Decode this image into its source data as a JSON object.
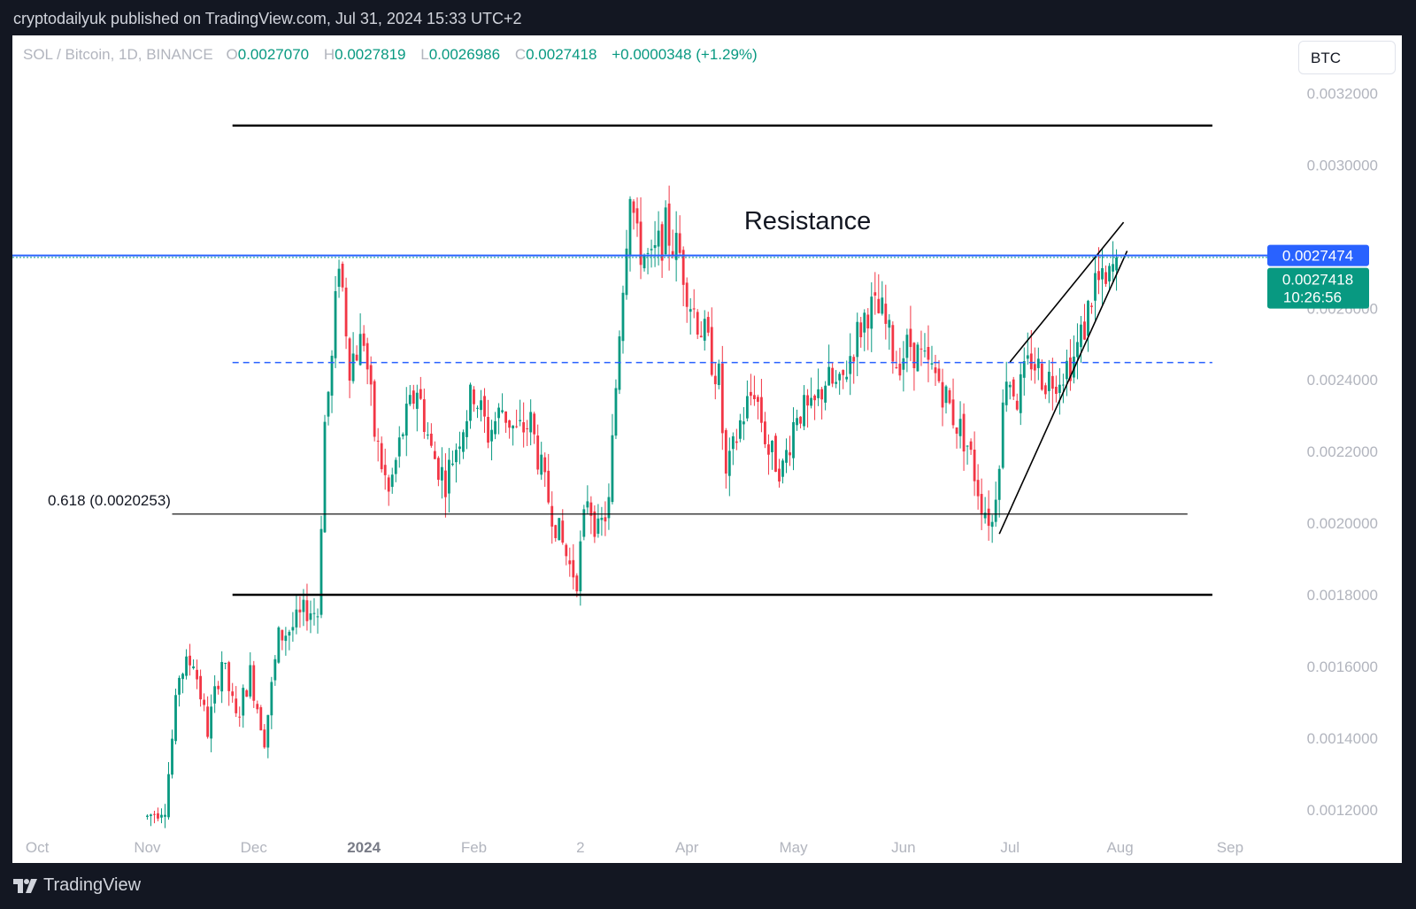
{
  "header": {
    "publisher": "cryptodailyuk published on TradingView.com, Jul 31, 2024 15:33 UTC+2"
  },
  "legend": {
    "symbol": "SOL / Bitcoin, 1D, BINANCE",
    "open_label": "O",
    "open": "0.0027070",
    "high_label": "H",
    "high": "0.0027819",
    "low_label": "L",
    "low": "0.0026986",
    "close_label": "C",
    "close": "0.0027418",
    "change": "+0.0000348 (+1.29%)"
  },
  "currency_button": "BTC",
  "footer": {
    "brand": "TradingView",
    "logo_icon": "tradingview-logo-icon"
  },
  "colors": {
    "up": "#089981",
    "down": "#f23645",
    "price_line": "#2962ff",
    "axis_text": "#b2b5be",
    "background": "#131722"
  },
  "chart_data": {
    "type": "candlestick",
    "symbol": "SOL / Bitcoin",
    "interval": "1D",
    "ylim": [
      0.00115,
      0.0033
    ],
    "y_ticks": [
      "0.0032000",
      "0.0030000",
      "0.0026000",
      "0.0024000",
      "0.0022000",
      "0.0020000",
      "0.0018000",
      "0.0016000",
      "0.0014000",
      "0.0012000"
    ],
    "x_axis": {
      "start": "2023-09-24",
      "end": "2024-09-07"
    },
    "x_ticks": [
      {
        "date": "2023-10-01",
        "label": "Oct",
        "bold": false
      },
      {
        "date": "2023-11-01",
        "label": "Nov",
        "bold": false
      },
      {
        "date": "2023-12-01",
        "label": "Dec",
        "bold": false
      },
      {
        "date": "2024-01-01",
        "label": "2024",
        "bold": true
      },
      {
        "date": "2024-02-01",
        "label": "Feb",
        "bold": false
      },
      {
        "date": "2024-03-02",
        "label": "2",
        "bold": false
      },
      {
        "date": "2024-04-01",
        "label": "Apr",
        "bold": false
      },
      {
        "date": "2024-05-01",
        "label": "May",
        "bold": false
      },
      {
        "date": "2024-06-01",
        "label": "Jun",
        "bold": false
      },
      {
        "date": "2024-07-01",
        "label": "Jul",
        "bold": false
      },
      {
        "date": "2024-08-01",
        "label": "Aug",
        "bold": false
      },
      {
        "date": "2024-09-01",
        "label": "Sep",
        "bold": false
      }
    ],
    "path": [
      [
        "2023-11-01",
        0.00118
      ],
      [
        "2023-11-06",
        0.00121
      ],
      [
        "2023-11-10",
        0.00158
      ],
      [
        "2023-11-14",
        0.00162
      ],
      [
        "2023-11-18",
        0.00142
      ],
      [
        "2023-11-22",
        0.00162
      ],
      [
        "2023-11-26",
        0.00145
      ],
      [
        "2023-11-30",
        0.00158
      ],
      [
        "2023-12-04",
        0.0014
      ],
      [
        "2023-12-08",
        0.00168
      ],
      [
        "2023-12-12",
        0.00171
      ],
      [
        "2023-12-16",
        0.00176
      ],
      [
        "2023-12-19",
        0.00175
      ],
      [
        "2023-12-21",
        0.00228
      ],
      [
        "2023-12-23",
        0.00245
      ],
      [
        "2023-12-25",
        0.00275
      ],
      [
        "2023-12-28",
        0.00245
      ],
      [
        "2024-01-01",
        0.00252
      ],
      [
        "2024-01-04",
        0.00225
      ],
      [
        "2024-01-08",
        0.00208
      ],
      [
        "2024-01-12",
        0.00226
      ],
      [
        "2024-01-16",
        0.00238
      ],
      [
        "2024-01-20",
        0.0022
      ],
      [
        "2024-01-24",
        0.00212
      ],
      [
        "2024-01-28",
        0.00225
      ],
      [
        "2024-02-01",
        0.00237
      ],
      [
        "2024-02-05",
        0.00225
      ],
      [
        "2024-02-09",
        0.00232
      ],
      [
        "2024-02-13",
        0.00225
      ],
      [
        "2024-02-17",
        0.00228
      ],
      [
        "2024-02-21",
        0.0021
      ],
      [
        "2024-02-25",
        0.00197
      ],
      [
        "2024-02-28",
        0.00188
      ],
      [
        "2024-03-01",
        0.00185
      ],
      [
        "2024-03-04",
        0.00208
      ],
      [
        "2024-03-07",
        0.00197
      ],
      [
        "2024-03-10",
        0.00205
      ],
      [
        "2024-03-13",
        0.00255
      ],
      [
        "2024-03-16",
        0.00295
      ],
      [
        "2024-03-18",
        0.00278
      ],
      [
        "2024-03-22",
        0.00272
      ],
      [
        "2024-03-26",
        0.00282
      ],
      [
        "2024-03-30",
        0.00275
      ],
      [
        "2024-04-02",
        0.00262
      ],
      [
        "2024-04-06",
        0.00252
      ],
      [
        "2024-04-10",
        0.0024
      ],
      [
        "2024-04-12",
        0.00212
      ],
      [
        "2024-04-16",
        0.00228
      ],
      [
        "2024-04-20",
        0.00238
      ],
      [
        "2024-04-24",
        0.0022
      ],
      [
        "2024-04-28",
        0.00215
      ],
      [
        "2024-05-02",
        0.00232
      ],
      [
        "2024-05-06",
        0.0023
      ],
      [
        "2024-05-10",
        0.0024
      ],
      [
        "2024-05-14",
        0.00237
      ],
      [
        "2024-05-18",
        0.0025
      ],
      [
        "2024-05-22",
        0.0026
      ],
      [
        "2024-05-26",
        0.00258
      ],
      [
        "2024-05-30",
        0.00245
      ],
      [
        "2024-06-03",
        0.0025
      ],
      [
        "2024-06-07",
        0.00244
      ],
      [
        "2024-06-11",
        0.0024
      ],
      [
        "2024-06-15",
        0.0023
      ],
      [
        "2024-06-19",
        0.00222
      ],
      [
        "2024-06-23",
        0.00206
      ],
      [
        "2024-06-26",
        0.002
      ],
      [
        "2024-06-28",
        0.0022
      ],
      [
        "2024-06-30",
        0.00243
      ],
      [
        "2024-07-03",
        0.00235
      ],
      [
        "2024-07-07",
        0.00246
      ],
      [
        "2024-07-11",
        0.0024
      ],
      [
        "2024-07-15",
        0.00242
      ],
      [
        "2024-07-19",
        0.00246
      ],
      [
        "2024-07-22",
        0.00255
      ],
      [
        "2024-07-25",
        0.00268
      ],
      [
        "2024-07-28",
        0.00265
      ],
      [
        "2024-07-31",
        0.00274
      ]
    ],
    "price_line": {
      "value": 0.0027474,
      "label": "0.0027474"
    },
    "last_price": {
      "value": 0.0027418,
      "label": "0.0027418",
      "countdown": "10:26:56"
    },
    "annotations": [
      {
        "kind": "hline",
        "y": 0.00311,
        "x0": "2023-11-25",
        "x1": "2024-08-27",
        "style": "bold",
        "color": "#000000"
      },
      {
        "kind": "hline",
        "y": 0.0018,
        "x0": "2023-11-25",
        "x1": "2024-08-27",
        "style": "bold",
        "color": "#000000"
      },
      {
        "kind": "hline",
        "y": 0.0024482,
        "x0": "2023-11-25",
        "x1": "2024-08-27",
        "style": "dashed",
        "color": "#2962ff"
      },
      {
        "kind": "hline",
        "y": 0.0020253,
        "x0": "2023-11-08",
        "x1": "2024-08-20",
        "style": "thin",
        "color": "#000000",
        "label": "0.618 (0.0020253)"
      },
      {
        "kind": "segment",
        "p0": [
          "2024-06-28",
          0.00197
        ],
        "p1": [
          "2024-08-03",
          0.00276
        ],
        "color": "#000000"
      },
      {
        "kind": "segment",
        "p0": [
          "2024-07-01",
          0.00245
        ],
        "p1": [
          "2024-08-02",
          0.00284
        ],
        "color": "#000000"
      },
      {
        "kind": "text",
        "text": "Resistance",
        "at": [
          "2024-05-05",
          0.00282
        ]
      }
    ]
  }
}
